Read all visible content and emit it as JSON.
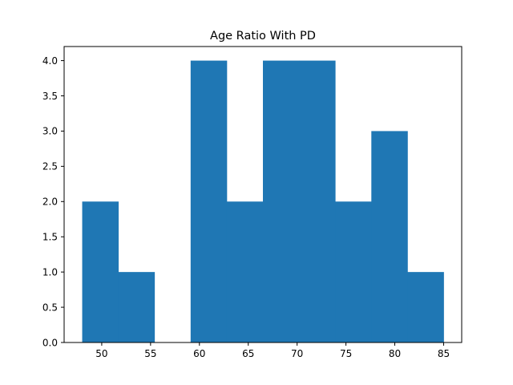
{
  "chart_data": {
    "type": "bar",
    "title": "Age Ratio With PD",
    "xlabel": "",
    "ylabel": "",
    "bins": [
      {
        "x0": 48.0,
        "x1": 51.7,
        "count": 2
      },
      {
        "x0": 51.7,
        "x1": 55.4,
        "count": 1
      },
      {
        "x0": 55.4,
        "x1": 59.1,
        "count": 0
      },
      {
        "x0": 59.1,
        "x1": 62.8,
        "count": 4
      },
      {
        "x0": 62.8,
        "x1": 66.5,
        "count": 2
      },
      {
        "x0": 66.5,
        "x1": 70.2,
        "count": 4
      },
      {
        "x0": 70.2,
        "x1": 73.9,
        "count": 4
      },
      {
        "x0": 73.9,
        "x1": 77.6,
        "count": 2
      },
      {
        "x0": 77.6,
        "x1": 81.3,
        "count": 3
      },
      {
        "x0": 81.3,
        "x1": 85.0,
        "count": 1
      }
    ],
    "xlim": [
      46.15,
      86.85
    ],
    "ylim": [
      0,
      4.2
    ],
    "xticks": [
      50,
      55,
      60,
      65,
      70,
      75,
      80,
      85
    ],
    "xtick_labels": [
      "50",
      "55",
      "60",
      "65",
      "70",
      "75",
      "80",
      "85"
    ],
    "yticks": [
      0,
      0.5,
      1.0,
      1.5,
      2.0,
      2.5,
      3.0,
      3.5,
      4.0
    ],
    "ytick_labels": [
      "0.0",
      "0.5",
      "1.0",
      "1.5",
      "2.0",
      "2.5",
      "3.0",
      "3.5",
      "4.0"
    ],
    "bar_color": "#1f77b4",
    "grid": false,
    "legend": "none"
  }
}
